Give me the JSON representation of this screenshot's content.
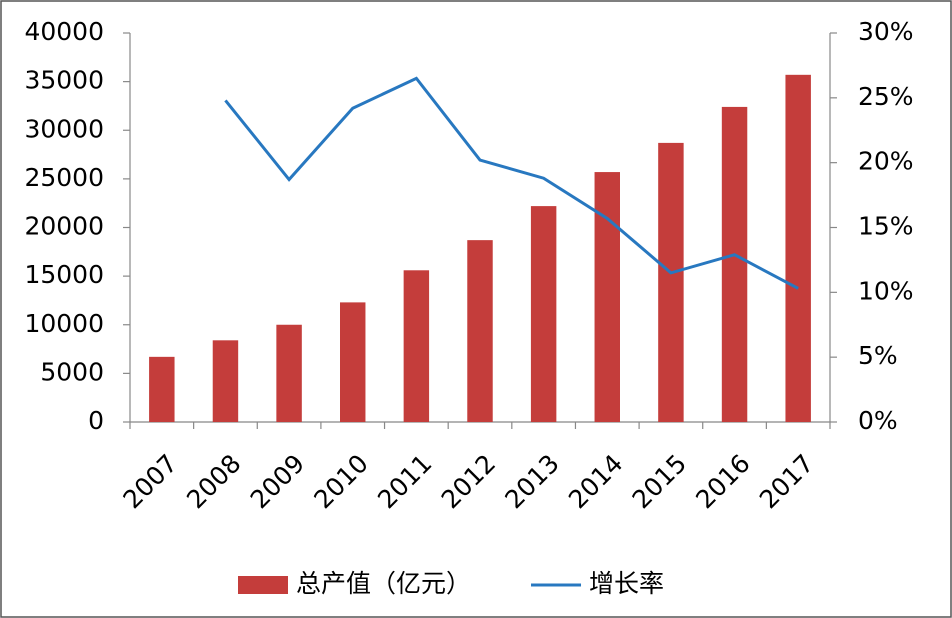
{
  "chart_data": {
    "type": "bar",
    "categories": [
      "2007",
      "2008",
      "2009",
      "2010",
      "2011",
      "2012",
      "2013",
      "2014",
      "2015",
      "2016",
      "2017"
    ],
    "series": [
      {
        "name": "总产值（亿元）",
        "color": "#c43d3b",
        "values": [
          6700,
          8400,
          10000,
          12300,
          15600,
          18700,
          22200,
          25700,
          28700,
          32400,
          35700
        ]
      },
      {
        "name": "增长率",
        "type": "line",
        "axis": "y2",
        "color": "#2878c0",
        "values": [
          null,
          24.8,
          18.7,
          24.2,
          26.5,
          20.2,
          18.8,
          15.7,
          11.5,
          12.9,
          10.3
        ]
      }
    ],
    "ylim": [
      0,
      40000
    ],
    "yticks": [
      0,
      5000,
      10000,
      15000,
      20000,
      25000,
      30000,
      35000,
      40000
    ],
    "y2lim": [
      0,
      30
    ],
    "y2ticks": [
      {
        "value": 0,
        "label": "0%"
      },
      {
        "value": 5,
        "label": "5%"
      },
      {
        "value": 10,
        "label": "10%"
      },
      {
        "value": 15,
        "label": "15%"
      },
      {
        "value": 20,
        "label": "20%"
      },
      {
        "value": 25,
        "label": "25%"
      },
      {
        "value": 30,
        "label": "30%"
      }
    ],
    "legend": "bottom"
  }
}
